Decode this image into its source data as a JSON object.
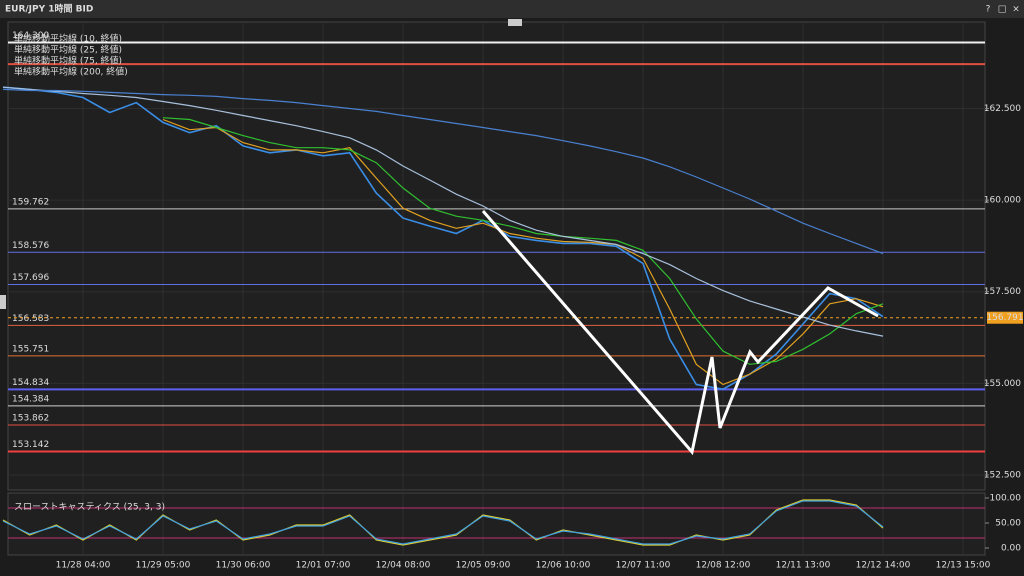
{
  "header": {
    "title": "EUR/JPY 1時間 BID",
    "controls": [
      "?",
      "□",
      "×"
    ]
  },
  "chart_data": [
    {
      "type": "line",
      "categories": [
        null,
        null,
        null,
        "11/28 04:00",
        null,
        null,
        "11/29 05:00",
        null,
        null,
        "11/30 06:00",
        null,
        null,
        "12/01 07:00",
        null,
        null,
        "12/04 08:00",
        null,
        null,
        "12/05 09:00",
        null,
        null,
        "12/06 10:00",
        null,
        null,
        "12/07 11:00",
        null,
        null,
        "12/08 12:00",
        null,
        null,
        "12/11 13:00",
        null,
        null,
        "12/12 14:00",
        null,
        null,
        "12/13 15:00"
      ],
      "ylim": [
        152.09,
        164.86
      ],
      "yticks": [
        {
          "value": 152.5,
          "label": "152.500"
        },
        {
          "value": 155,
          "label": "155.000"
        },
        {
          "value": 157.5,
          "label": "157.500"
        },
        {
          "value": 160,
          "label": "160.000"
        },
        {
          "value": 162.5,
          "label": "162.500"
        }
      ],
      "grid": true,
      "series": [
        {
          "color": "#3a8ee6",
          "values": [
            163.08,
            163.02,
            162.94,
            162.8,
            162.39,
            162.66,
            162.12,
            161.84,
            162.03,
            161.48,
            161.29,
            161.37,
            161.21,
            161.29,
            160.19,
            159.51,
            159.29,
            159.09,
            159.45,
            159.01,
            158.9,
            158.82,
            158.82,
            158.74,
            158.27,
            156.21,
            154.97,
            154.84,
            155.25,
            155.8,
            156.62,
            157.45,
            157.31,
            156.82,
            null,
            null,
            null
          ]
        },
        {
          "name": "単純移動平均線 (10, 終値)",
          "color": "#e0a020",
          "values": [
            null,
            null,
            null,
            null,
            null,
            null,
            162.2,
            161.92,
            161.98,
            161.57,
            161.37,
            161.37,
            161.29,
            161.43,
            160.6,
            159.78,
            159.45,
            159.23,
            159.37,
            159.09,
            158.96,
            158.87,
            158.85,
            158.79,
            158.41,
            157.03,
            155.52,
            154.97,
            155.25,
            155.66,
            156.35,
            157.17,
            157.31,
            157.09,
            null,
            null,
            null
          ]
        },
        {
          "name": "単純移動平均線 (25, 終値)",
          "color": "#30c030",
          "values": [
            null,
            null,
            null,
            null,
            null,
            null,
            162.25,
            162.2,
            161.98,
            161.76,
            161.57,
            161.43,
            161.43,
            161.37,
            161.02,
            160.33,
            159.78,
            159.56,
            159.45,
            159.29,
            159.09,
            159.01,
            158.96,
            158.9,
            158.63,
            157.86,
            156.76,
            155.88,
            155.52,
            155.6,
            155.93,
            156.35,
            156.9,
            157.17,
            null,
            null,
            null
          ]
        },
        {
          "name": "単純移動平均線 (75, 終値)",
          "color": "#a8c0dc",
          "values": [
            163.08,
            163.02,
            162.97,
            162.91,
            162.86,
            162.8,
            162.69,
            162.58,
            162.45,
            162.31,
            162.17,
            162.03,
            161.87,
            161.7,
            161.37,
            160.93,
            160.55,
            160.16,
            159.84,
            159.45,
            159.18,
            159.01,
            158.9,
            158.79,
            158.54,
            158.24,
            157.86,
            157.53,
            157.25,
            157.03,
            156.81,
            156.59,
            156.43,
            156.29,
            null,
            null,
            null
          ]
        },
        {
          "name": "単純移動平均線 (200, 終値)",
          "color": "#4a80d0",
          "values": [
            163.02,
            162.99,
            162.99,
            162.97,
            162.94,
            162.91,
            162.88,
            162.86,
            162.83,
            162.77,
            162.72,
            162.66,
            162.58,
            162.5,
            162.42,
            162.31,
            162.2,
            162.09,
            161.98,
            161.87,
            161.76,
            161.62,
            161.48,
            161.32,
            161.15,
            160.91,
            160.63,
            160.33,
            160.03,
            159.7,
            159.37,
            159.09,
            158.82,
            158.54,
            null,
            null,
            null
          ]
        }
      ],
      "levels": [
        {
          "value": 164.3,
          "label": "164.300",
          "color": "#f0f0f0",
          "width": 2
        },
        {
          "value": 163.71,
          "color": "#e05040",
          "width": 2
        },
        {
          "value": 159.762,
          "label": "159.762",
          "color": "#c8c8c8",
          "width": 1
        },
        {
          "value": 158.576,
          "label": "158.576",
          "color": "#6070e0",
          "width": 1
        },
        {
          "value": 157.696,
          "label": "157.696",
          "color": "#6070e0",
          "width": 1
        },
        {
          "value": 156.583,
          "label": "156.583",
          "color": "#e06040",
          "width": 1
        },
        {
          "value": 155.751,
          "label": "155.751",
          "color": "#e07030",
          "width": 1
        },
        {
          "value": 154.834,
          "label": "154.834",
          "color": "#6060f0",
          "width": 2
        },
        {
          "value": 154.384,
          "label": "154.384",
          "color": "#d0d0d0",
          "width": 1
        },
        {
          "value": 153.862,
          "label": "153.862",
          "color": "#e05040",
          "width": 1
        },
        {
          "value": 153.142,
          "label": "153.142",
          "color": "#f04040",
          "width": 2
        }
      ],
      "current_price": {
        "value": 156.791,
        "label": "156.791",
        "color": "#f0a020"
      }
    },
    {
      "type": "line",
      "title": "スローストキャスティクス (25, 3, 3)",
      "ylim": [
        -14,
        110
      ],
      "yticks": [
        {
          "value": 0,
          "label": "0.00"
        },
        {
          "value": 50,
          "label": "50.00"
        },
        {
          "value": 100,
          "label": "100.00"
        }
      ],
      "grid": false,
      "series": [
        {
          "color": "#e0d030",
          "values": [
            56,
            26,
            46,
            16,
            46,
            16,
            66,
            36,
            56,
            16,
            26,
            46,
            46,
            66,
            16,
            6,
            16,
            26,
            66,
            56,
            16,
            36,
            26,
            16,
            6,
            6,
            26,
            16,
            26,
            76,
            96,
            96,
            86,
            40,
            null,
            null,
            null
          ]
        },
        {
          "color": "#40a0e0",
          "values": [
            54,
            28,
            44,
            18,
            44,
            18,
            64,
            38,
            54,
            18,
            28,
            44,
            44,
            64,
            18,
            8,
            18,
            28,
            64,
            54,
            18,
            34,
            28,
            18,
            8,
            8,
            24,
            18,
            28,
            74,
            94,
            94,
            84,
            42,
            null,
            null,
            null
          ]
        }
      ],
      "levels": [
        {
          "value": 80,
          "color": "#c03070",
          "width": 1
        },
        {
          "value": 20,
          "color": "#c03070",
          "width": 1
        }
      ]
    }
  ]
}
